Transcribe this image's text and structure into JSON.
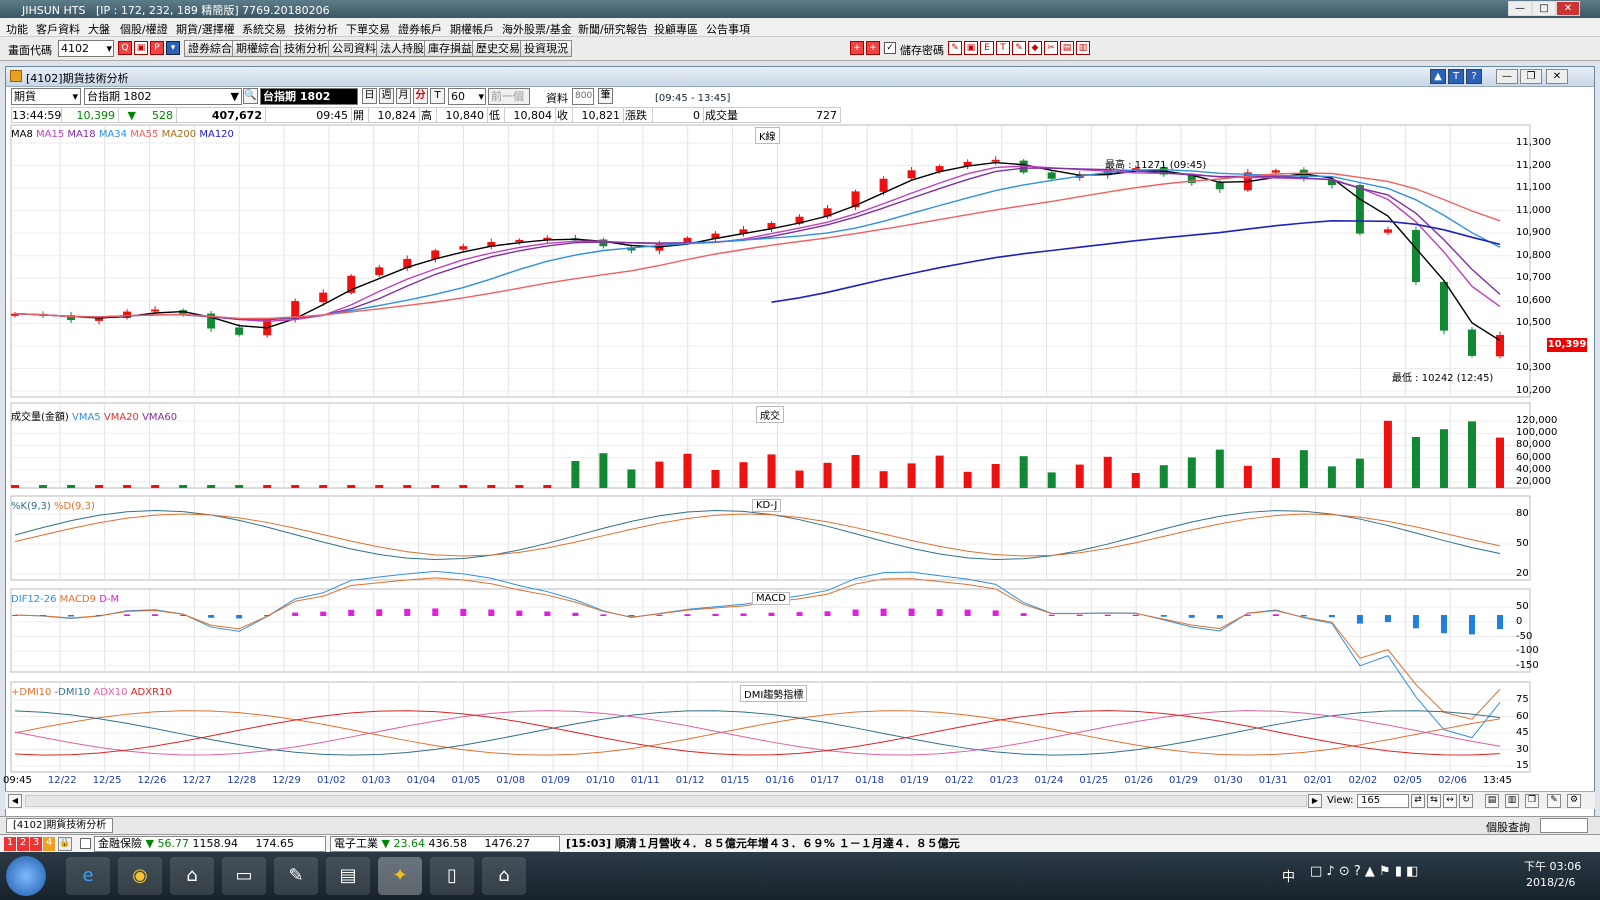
{
  "window": {
    "title": "JIHSUN HTS",
    "ip": "[IP : 172, 232, 189 精簡版] 7769.20180206"
  },
  "menu": [
    "功能",
    "客戶資料",
    "大盤",
    "個股/權證",
    "期貨/選擇權",
    "系統交易",
    "技術分析",
    "下單交易",
    "證券帳戶",
    "期權帳戶",
    "海外股票/基金",
    "新聞/研究報告",
    "投顧專區",
    "公告事項"
  ],
  "toolbar": {
    "code_label": "畫面代碼",
    "code_value": "4102",
    "buttons": [
      "證券綜合",
      "期權綜合",
      "技術分析",
      "公司資料",
      "法人持股",
      "庫存損益",
      "歷史交易",
      "投資現況"
    ],
    "save_pwd": "儲存密碼"
  },
  "inner": {
    "title": "[4102]期貨技術分析"
  },
  "controls": {
    "market": "期貨",
    "contract": "台指期 1802",
    "contract_display": "台指期 1802",
    "periods": [
      "日",
      "週",
      "月",
      "分",
      "T"
    ],
    "minutes": "60",
    "prev": "前一個",
    "data_label": "資料",
    "data_count": "800",
    "data_unit": "筆",
    "session": "[09:45 - 13:45]"
  },
  "quote": {
    "time": "13:44:59",
    "price": "10,399",
    "arrow": "▼",
    "change": "528",
    "volume_total": "407,672",
    "bar_time": "09:45",
    "open_label": "開",
    "open": "10,824",
    "high_label": "高",
    "high": "10,840",
    "low_label": "低",
    "low": "10,804",
    "close_label": "收",
    "close": "10,821",
    "chg_label": "漲跌",
    "chg": "0",
    "vol_label": "成交量",
    "vol": "727"
  },
  "panels": {
    "k": {
      "title": "K線",
      "legend": [
        "MA8",
        "MA15",
        "MA18",
        "MA34",
        "MA55",
        "MA200",
        "MA120"
      ],
      "legend_colors": [
        "#000000",
        "#c040c0",
        "#8030a0",
        "#3090e0",
        "#f06060",
        "#e07030",
        "#2020c0"
      ],
      "hi_note": "最高 : 11271 (09:45)",
      "lo_note": "最低 : 10242 (12:45)",
      "last_price": "10,399"
    },
    "vol": {
      "title": "成交",
      "legend": [
        "成交量(金額)",
        "VMA5",
        "VMA20",
        "VMA60"
      ],
      "legend_colors": [
        "#000000",
        "#3090e0",
        "#e03030",
        "#8030a0"
      ]
    },
    "kd": {
      "title": "KD-J",
      "legend": [
        "%K(9,3)",
        "%D(9,3)"
      ],
      "legend_colors": [
        "#30708a",
        "#e07030"
      ]
    },
    "macd": {
      "title": "MACD",
      "legend": [
        "DIF12-26",
        "MACD9",
        "D-M"
      ],
      "legend_colors": [
        "#3090e0",
        "#e07030",
        "#e020e0"
      ]
    },
    "dmi": {
      "title": "DMI趨勢指標",
      "legend": [
        "+DMI10",
        "-DMI10",
        "ADX10",
        "ADXR10"
      ],
      "legend_colors": [
        "#e07030",
        "#30708a",
        "#e060a0",
        "#e02020"
      ]
    }
  },
  "y_ticks": {
    "k": [
      "11,300",
      "11,200",
      "11,100",
      "11,000",
      "10,900",
      "10,800",
      "10,700",
      "10,600",
      "10,500",
      "10,399",
      "10,300",
      "10,200"
    ],
    "vol": [
      "120,000",
      "100,000",
      "80,000",
      "60,000",
      "40,000",
      "20,000"
    ],
    "kd": [
      "80",
      "50",
      "20"
    ],
    "macd": [
      "50",
      "0",
      "-50",
      "-100",
      "-150"
    ],
    "dmi": [
      "75",
      "60",
      "45",
      "30",
      "15"
    ]
  },
  "x_ticks": [
    "09:45",
    "12/22",
    "12/25",
    "12/26",
    "12/27",
    "12/28",
    "12/29",
    "01/02",
    "01/03",
    "01/04",
    "01/05",
    "01/08",
    "01/09",
    "01/10",
    "01/11",
    "01/12",
    "01/15",
    "01/16",
    "01/17",
    "01/18",
    "01/19",
    "01/22",
    "01/23",
    "01/24",
    "01/25",
    "01/26",
    "01/29",
    "01/30",
    "01/31",
    "02/01",
    "02/02",
    "02/05",
    "02/06",
    "13:45"
  ],
  "view": {
    "label": "View:",
    "value": "165"
  },
  "tabs": {
    "active": "[4102]期貨技術分析",
    "right": "個股查詢"
  },
  "ticker": {
    "nums": [
      "1",
      "2",
      "3",
      "4"
    ],
    "idx1_name": "金融保險",
    "idx1_arrow": "▼",
    "idx1_a": "56.77",
    "idx1_b": "1158.94",
    "idx1_c": "174.65",
    "idx2_name": "電子工業",
    "idx2_arrow": "▼",
    "idx2_a": "23.64",
    "idx2_b": "436.58",
    "idx2_c": "1476.27",
    "news": "[15:03] 順清１月營收４．８５億元年增４３．６９% １－１月達４．８５億元"
  },
  "taskbar": {
    "time": "下午 03:06",
    "date": "2018/2/6",
    "lang": "中"
  },
  "chart_data": {
    "type": "candlestick",
    "interval": "60",
    "price_range": [
      10200,
      11300
    ],
    "high": 11271,
    "low": 10242,
    "last": 10399,
    "closes_approx": [
      10500,
      10490,
      10470,
      10480,
      10510,
      10520,
      10500,
      10430,
      10400,
      10470,
      10560,
      10600,
      10680,
      10720,
      10760,
      10800,
      10820,
      10840,
      10850,
      10860,
      10850,
      10820,
      10800,
      10830,
      10860,
      10880,
      10900,
      10930,
      10960,
      11000,
      11080,
      11140,
      11180,
      11200,
      11220,
      11230,
      11170,
      11140,
      11160,
      11180,
      11190,
      11160,
      11120,
      11090,
      11170,
      11180,
      11140,
      11110,
      10880,
      10900,
      10650,
      10420,
      10300,
      10399
    ]
  }
}
